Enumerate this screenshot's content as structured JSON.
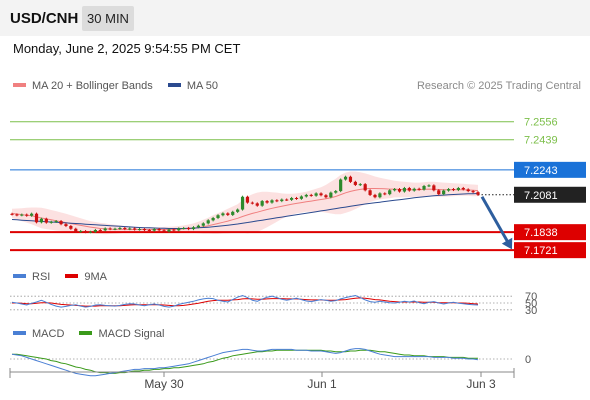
{
  "header": {
    "symbol": "USD/CNH",
    "timeframe": "30 MIN",
    "datetime": "Monday, June 2, 2025 9:54:55 PM CET"
  },
  "legend": {
    "main": [
      {
        "label": "MA 20 + Bollinger Bands",
        "color": "#f08080"
      },
      {
        "label": "MA 50",
        "color": "#2b4a8f"
      }
    ],
    "rsi": [
      {
        "label": "RSI",
        "color": "#4a7fd4"
      },
      {
        "label": "9MA",
        "color": "#dd0000"
      }
    ],
    "macd": [
      {
        "label": "MACD",
        "color": "#4a7fd4"
      },
      {
        "label": "MACD Signal",
        "color": "#3a9a1a"
      }
    ]
  },
  "credit": "Research © 2025 Trading Central",
  "colors": {
    "up_candle": "#2d8a2d",
    "down_candle": "#cc1111",
    "resistance": "#7cbf4a",
    "pivot": "#1a72d8",
    "support": "#dd0000",
    "current": "#222222",
    "arrow": "#2e5e9e"
  },
  "chart_data": {
    "type": "line",
    "title": "",
    "x_ticks": [
      "May 30",
      "Jun 1",
      "Jun 3"
    ],
    "levels": [
      {
        "value": 7.2556,
        "label": "7.2556",
        "kind": "resistance"
      },
      {
        "value": 7.2439,
        "label": "7.2439",
        "kind": "resistance"
      },
      {
        "value": 7.2243,
        "label": "7.2243",
        "kind": "pivot"
      },
      {
        "value": 7.2081,
        "label": "7.2081",
        "kind": "current"
      },
      {
        "value": 7.1838,
        "label": "7.1838",
        "kind": "support"
      },
      {
        "value": 7.1721,
        "label": "7.1721",
        "kind": "support"
      }
    ],
    "ylim": [
      7.167,
      7.271
    ],
    "series": [
      {
        "name": "Price",
        "values": [
          7.1953,
          7.1948,
          7.1952,
          7.1945,
          7.1958,
          7.1902,
          7.1925,
          7.19,
          7.1905,
          7.191,
          7.189,
          7.1878,
          7.186,
          7.1842,
          7.1845,
          7.1838,
          7.184,
          7.1852,
          7.185,
          7.1862,
          7.1858,
          7.186,
          7.1865,
          7.1858,
          7.1862,
          7.1855,
          7.1858,
          7.1852,
          7.1848,
          7.1858,
          7.185,
          7.1842,
          7.1855,
          7.185,
          7.1862,
          7.1865,
          7.1858,
          7.187,
          7.188,
          7.1895,
          7.1915,
          7.193,
          7.1948,
          7.196,
          7.195,
          7.197,
          7.1985,
          7.2068,
          7.203,
          7.2025,
          7.201,
          7.204,
          7.203,
          7.2045,
          7.204,
          7.205,
          7.2048,
          7.206,
          7.2055,
          7.207,
          7.208,
          7.2075,
          7.209,
          7.2078,
          7.2065,
          7.2095,
          7.2105,
          7.218,
          7.2198,
          7.2165,
          7.2145,
          7.215,
          7.211,
          7.208,
          7.2065,
          7.209,
          7.2085,
          7.211,
          7.2118,
          7.2102,
          7.2125,
          7.2108,
          7.212,
          7.2115,
          7.2138,
          7.2142,
          7.211,
          7.2085,
          7.2108,
          7.2118,
          7.2112,
          7.2125,
          7.2116,
          7.2105,
          7.2098,
          7.2081
        ]
      },
      {
        "name": "MA 20",
        "values": [
          7.196,
          7.1956,
          7.1952,
          7.1948,
          7.1944,
          7.1937,
          7.193,
          7.1924,
          7.1918,
          7.1912,
          7.1906,
          7.19,
          7.1894,
          7.1888,
          7.1882,
          7.1876,
          7.1871,
          7.1866,
          7.1862,
          7.186,
          7.1858,
          7.1857,
          7.1856,
          7.1856,
          7.1855,
          7.1855,
          7.1855,
          7.1855,
          7.1855,
          7.1855,
          7.1855,
          7.1855,
          7.1855,
          7.1856,
          7.1857,
          7.1859,
          7.1861,
          7.1864,
          7.1868,
          7.1873,
          7.188,
          7.1887,
          7.1894,
          7.1902,
          7.191,
          7.1919,
          7.1928,
          7.194,
          7.195,
          7.196,
          7.1968,
          7.1977,
          7.1985,
          7.1993,
          7.2,
          7.2007,
          7.2013,
          7.2019,
          7.2025,
          7.203,
          7.2035,
          7.204,
          7.2045,
          7.205,
          7.2055,
          7.2062,
          7.207,
          7.2082,
          7.2094,
          7.2103,
          7.211,
          7.2116,
          7.212,
          7.2122,
          7.2122,
          7.2121,
          7.212,
          7.2118,
          7.2118,
          7.2116,
          7.2115,
          7.2114,
          7.2114,
          7.2114,
          7.2116,
          7.2118,
          7.2117,
          7.2115,
          7.2114,
          7.2114,
          7.2114,
          7.2114,
          7.2113,
          7.2112,
          7.211,
          7.2108
        ]
      },
      {
        "name": "MA 50",
        "values": [
          7.192,
          7.1918,
          7.1916,
          7.1914,
          7.1912,
          7.191,
          7.1908,
          7.1906,
          7.1904,
          7.1902,
          7.19,
          7.1898,
          7.1896,
          7.1894,
          7.1892,
          7.189,
          7.1888,
          7.1886,
          7.1884,
          7.1882,
          7.188,
          7.1878,
          7.1876,
          7.1874,
          7.1872,
          7.187,
          7.1868,
          7.1867,
          7.1866,
          7.1865,
          7.1864,
          7.1863,
          7.1862,
          7.1862,
          7.1862,
          7.1862,
          7.1863,
          7.1864,
          7.1866,
          7.1868,
          7.187,
          7.1873,
          7.1876,
          7.1879,
          7.1883,
          7.1887,
          7.1891,
          7.1896,
          7.1901,
          7.1906,
          7.1911,
          7.1916,
          7.1921,
          7.1926,
          7.1931,
          7.1936,
          7.1941,
          7.1946,
          7.1951,
          7.1956,
          7.1961,
          7.1966,
          7.1971,
          7.1976,
          7.1981,
          7.1986,
          7.1991,
          7.1996,
          7.2001,
          7.2006,
          7.2011,
          7.2016,
          7.2021,
          7.2025,
          7.2029,
          7.2033,
          7.2037,
          7.2041,
          7.2045,
          7.2049,
          7.2053,
          7.2057,
          7.2061,
          7.2065,
          7.2068,
          7.2071,
          7.2074,
          7.2077,
          7.2079,
          7.2081,
          7.2083,
          7.2085,
          7.2086,
          7.2087,
          7.2088,
          7.2089
        ]
      },
      {
        "name": "BB Upper",
        "values": [
          7.199,
          7.1992,
          7.1994,
          7.1996,
          7.1998,
          7.1998,
          7.1996,
          7.199,
          7.1982,
          7.1975,
          7.1966,
          7.1958,
          7.1948,
          7.1938,
          7.1928,
          7.1918,
          7.191,
          7.1904,
          7.1898,
          7.1895,
          7.189,
          7.1886,
          7.1882,
          7.1878,
          7.1875,
          7.1872,
          7.187,
          7.187,
          7.187,
          7.187,
          7.187,
          7.1872,
          7.1873,
          7.1875,
          7.1878,
          7.1882,
          7.1888,
          7.1895,
          7.1905,
          7.1918,
          7.1932,
          7.1948,
          7.1962,
          7.1975,
          7.199,
          7.2005,
          7.202,
          7.2045,
          7.207,
          7.2085,
          7.2095,
          7.21,
          7.21,
          7.2098,
          7.2095,
          7.209,
          7.2088,
          7.2088,
          7.209,
          7.2095,
          7.21,
          7.211,
          7.212,
          7.213,
          7.2145,
          7.2165,
          7.2185,
          7.221,
          7.2225,
          7.2232,
          7.2232,
          7.2228,
          7.222,
          7.221,
          7.22,
          7.2192,
          7.2185,
          7.2178,
          7.2172,
          7.2168,
          7.2165,
          7.2162,
          7.216,
          7.216,
          7.2162,
          7.2165,
          7.2165,
          7.2163,
          7.216,
          7.2158,
          7.2156,
          7.2154,
          7.2152,
          7.215,
          7.2148,
          7.2145
        ]
      },
      {
        "name": "BB Lower",
        "values": [
          7.193,
          7.192,
          7.191,
          7.19,
          7.189,
          7.1876,
          7.1864,
          7.1858,
          7.1854,
          7.1849,
          7.1846,
          7.1842,
          7.184,
          7.1838,
          7.1836,
          7.1834,
          7.1832,
          7.1828,
          7.1826,
          7.1825,
          7.1826,
          7.1828,
          7.183,
          7.1834,
          7.1835,
          7.1838,
          7.184,
          7.184,
          7.184,
          7.184,
          7.184,
          7.1838,
          7.1837,
          7.1837,
          7.1836,
          7.1836,
          7.1834,
          7.1833,
          7.1831,
          7.1828,
          7.1828,
          7.1826,
          7.1826,
          7.1829,
          7.183,
          7.1833,
          7.1836,
          7.1835,
          7.183,
          7.1835,
          7.1841,
          7.1854,
          7.187,
          7.1888,
          7.1905,
          7.1924,
          7.1938,
          7.195,
          7.196,
          7.1965,
          7.197,
          7.197,
          7.197,
          7.197,
          7.1965,
          7.1959,
          7.1955,
          7.1954,
          7.1963,
          7.1974,
          7.1988,
          7.2004,
          7.202,
          7.2034,
          7.2044,
          7.205,
          7.2055,
          7.2058,
          7.2064,
          7.2064,
          7.2065,
          7.2066,
          7.2068,
          7.2068,
          7.207,
          7.2071,
          7.2069,
          7.2067,
          7.2068,
          7.207,
          7.2072,
          7.2074,
          7.2074,
          7.2074,
          7.2072,
          7.2071
        ]
      }
    ],
    "rsi": {
      "levels": [
        70,
        50,
        30
      ],
      "ylim": [
        0,
        100
      ],
      "series": [
        {
          "name": "RSI",
          "values": [
            52,
            50,
            47,
            44,
            49,
            53,
            58,
            52,
            46,
            41,
            38,
            40,
            43,
            45,
            41,
            38,
            40,
            44,
            45,
            43,
            42,
            41,
            43,
            46,
            48,
            47,
            44,
            42,
            45,
            47,
            44,
            40,
            38,
            41,
            46,
            49,
            52,
            55,
            59,
            62,
            64,
            63,
            58,
            55,
            53,
            60,
            67,
            72,
            66,
            58,
            55,
            62,
            67,
            70,
            66,
            61,
            58,
            61,
            64,
            60,
            56,
            54,
            57,
            60,
            58,
            55,
            57,
            62,
            66,
            69,
            72,
            66,
            59,
            54,
            52,
            55,
            53,
            51,
            50,
            52,
            55,
            53,
            56,
            51,
            48,
            52,
            54,
            50,
            47,
            50,
            52,
            49,
            48,
            46,
            45,
            44
          ]
        },
        {
          "name": "9MA",
          "values": [
            50,
            50,
            49,
            48,
            48,
            49,
            51,
            51,
            50,
            48,
            46,
            45,
            44,
            43,
            42,
            41,
            41,
            41,
            42,
            42,
            42,
            42,
            42,
            43,
            44,
            45,
            45,
            45,
            45,
            45,
            45,
            44,
            43,
            42,
            42,
            43,
            45,
            47,
            49,
            52,
            55,
            57,
            58,
            58,
            58,
            59,
            60,
            62,
            63,
            62,
            61,
            61,
            62,
            63,
            63,
            63,
            62,
            62,
            62,
            61,
            60,
            59,
            59,
            59,
            58,
            58,
            58,
            59,
            60,
            62,
            64,
            65,
            64,
            62,
            60,
            59,
            57,
            55,
            54,
            53,
            53,
            53,
            53,
            53,
            52,
            52,
            52,
            51,
            51,
            51,
            51,
            50,
            50,
            49,
            48,
            47
          ]
        }
      ]
    },
    "macd": {
      "zero_label": "0",
      "series": [
        {
          "name": "MACD",
          "values": [
            0.0006,
            0.0005,
            0.0004,
            0.0002,
            0.0,
            -0.0002,
            -0.0004,
            -0.0006,
            -0.0008,
            -0.001,
            -0.0012,
            -0.0014,
            -0.0016,
            -0.0018,
            -0.0019,
            -0.002,
            -0.0021,
            -0.0021,
            -0.002,
            -0.0019,
            -0.0018,
            -0.0017,
            -0.0016,
            -0.0015,
            -0.0014,
            -0.0013,
            -0.0013,
            -0.0012,
            -0.0012,
            -0.0012,
            -0.0011,
            -0.0011,
            -0.001,
            -0.0009,
            -0.0008,
            -0.0007,
            -0.0006,
            -0.0004,
            -0.0002,
            0.0,
            0.0002,
            0.0004,
            0.0006,
            0.0008,
            0.0009,
            0.001,
            0.0011,
            0.0012,
            0.0012,
            0.0011,
            0.001,
            0.001,
            0.0011,
            0.0012,
            0.0012,
            0.0012,
            0.0012,
            0.0012,
            0.0011,
            0.0011,
            0.0011,
            0.001,
            0.001,
            0.001,
            0.0009,
            0.0008,
            0.0007,
            0.0008,
            0.001,
            0.0012,
            0.0013,
            0.0013,
            0.0012,
            0.001,
            0.0008,
            0.0006,
            0.0005,
            0.0004,
            0.0003,
            0.0003,
            0.0003,
            0.0003,
            0.0003,
            0.0003,
            0.0003,
            0.0003,
            0.0002,
            0.0002,
            0.0002,
            0.0002,
            0.0001,
            0.0001,
            0.0001,
            0.0,
            0.0,
            -0.0001
          ]
        },
        {
          "name": "MACD Signal",
          "values": [
            0.0006,
            0.0006,
            0.0005,
            0.0004,
            0.0003,
            0.0002,
            0.0001,
            0.0,
            -0.0002,
            -0.0003,
            -0.0005,
            -0.0006,
            -0.0008,
            -0.001,
            -0.0011,
            -0.0013,
            -0.0014,
            -0.0016,
            -0.0017,
            -0.0017,
            -0.0018,
            -0.0018,
            -0.0017,
            -0.0017,
            -0.0016,
            -0.0015,
            -0.0015,
            -0.0014,
            -0.0014,
            -0.0013,
            -0.0013,
            -0.0012,
            -0.0012,
            -0.0011,
            -0.0011,
            -0.001,
            -0.0009,
            -0.0008,
            -0.0007,
            -0.0006,
            -0.0004,
            -0.0003,
            -0.0001,
            0.0001,
            0.0002,
            0.0004,
            0.0005,
            0.0006,
            0.0007,
            0.0008,
            0.0009,
            0.0009,
            0.001,
            0.001,
            0.0011,
            0.0011,
            0.0011,
            0.0011,
            0.0011,
            0.0011,
            0.0011,
            0.0011,
            0.0011,
            0.0011,
            0.001,
            0.001,
            0.0009,
            0.0009,
            0.0009,
            0.001,
            0.001,
            0.0011,
            0.0011,
            0.0011,
            0.001,
            0.0009,
            0.0009,
            0.0008,
            0.0007,
            0.0006,
            0.0005,
            0.0005,
            0.0004,
            0.0004,
            0.0004,
            0.0003,
            0.0003,
            0.0003,
            0.0003,
            0.0002,
            0.0002,
            0.0002,
            0.0002,
            0.0001,
            0.0001,
            0.0001
          ]
        }
      ]
    }
  }
}
